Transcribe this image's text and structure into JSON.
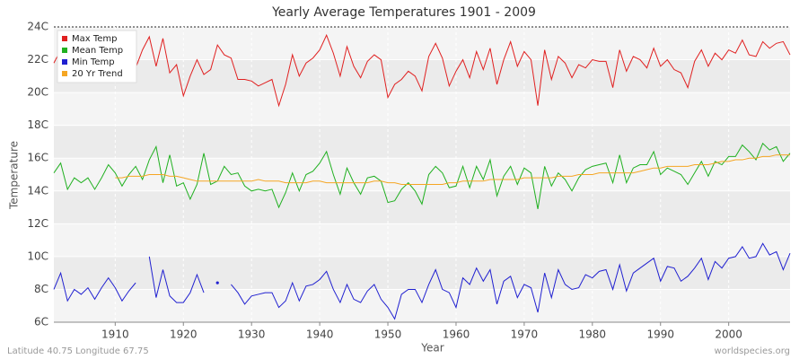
{
  "chart_data": {
    "type": "line",
    "title": "Yearly Average Temperatures 1901 - 2009",
    "x_label": "Year",
    "y_label": "Temperature",
    "footer_left": "Latitude 40.75 Longitude 67.75",
    "footer_right": "worldspecies.org",
    "legend": "upper left",
    "grid": true,
    "xlim": [
      1901,
      2009
    ],
    "xticks": [
      1910,
      1920,
      1930,
      1940,
      1950,
      1960,
      1970,
      1980,
      1990,
      2000
    ],
    "ylim": [
      6,
      24
    ],
    "yticks": [
      {
        "value": 6,
        "label": "6C"
      },
      {
        "value": 8,
        "label": "8C"
      },
      {
        "value": 10,
        "label": "10C"
      },
      {
        "value": 12,
        "label": "12C"
      },
      {
        "value": 14,
        "label": "14C"
      },
      {
        "value": 16,
        "label": "16C"
      },
      {
        "value": 18,
        "label": "18C"
      },
      {
        "value": 20,
        "label": "20C"
      },
      {
        "value": 22,
        "label": "22C"
      },
      {
        "value": 24,
        "label": "24C"
      }
    ],
    "x": [
      1901,
      1902,
      1903,
      1904,
      1905,
      1906,
      1907,
      1908,
      1909,
      1910,
      1911,
      1912,
      1913,
      1914,
      1915,
      1916,
      1917,
      1918,
      1919,
      1920,
      1921,
      1922,
      1923,
      1924,
      1925,
      1926,
      1927,
      1928,
      1929,
      1930,
      1931,
      1932,
      1933,
      1934,
      1935,
      1936,
      1937,
      1938,
      1939,
      1940,
      1941,
      1942,
      1943,
      1944,
      1945,
      1946,
      1947,
      1948,
      1949,
      1950,
      1951,
      1952,
      1953,
      1954,
      1955,
      1956,
      1957,
      1958,
      1959,
      1960,
      1961,
      1962,
      1963,
      1964,
      1965,
      1966,
      1967,
      1968,
      1969,
      1970,
      1971,
      1972,
      1973,
      1974,
      1975,
      1976,
      1977,
      1978,
      1979,
      1980,
      1981,
      1982,
      1983,
      1984,
      1985,
      1986,
      1987,
      1988,
      1989,
      1990,
      1991,
      1992,
      1993,
      1994,
      1995,
      1996,
      1997,
      1998,
      1999,
      2000,
      2001,
      2002,
      2003,
      2004,
      2005,
      2006,
      2007,
      2008,
      2009
    ],
    "series": [
      {
        "name": "Max Temp",
        "color": "#e02020",
        "values": [
          21.8,
          22.6,
          21.2,
          21.9,
          21.3,
          22.0,
          21.4,
          22.3,
          21.0,
          22.8,
          21.6,
          22.2,
          21.5,
          22.6,
          23.4,
          21.6,
          23.3,
          21.2,
          21.7,
          19.8,
          21.0,
          22.0,
          21.1,
          21.4,
          22.9,
          22.3,
          22.1,
          20.8,
          20.8,
          20.7,
          20.4,
          20.6,
          20.8,
          19.2,
          20.5,
          22.3,
          21.0,
          21.8,
          22.1,
          22.6,
          23.5,
          22.4,
          21.0,
          22.8,
          21.6,
          20.9,
          21.9,
          22.3,
          22.0,
          19.7,
          20.5,
          20.8,
          21.3,
          21.0,
          20.1,
          22.2,
          23.0,
          22.1,
          20.4,
          21.3,
          22.0,
          20.9,
          22.5,
          21.4,
          22.7,
          20.5,
          22.0,
          23.1,
          21.6,
          22.5,
          22.0,
          19.2,
          22.6,
          20.8,
          22.2,
          21.8,
          20.9,
          21.7,
          21.5,
          22.0,
          21.9,
          21.9,
          20.3,
          22.6,
          21.3,
          22.2,
          22.0,
          21.5,
          22.7,
          21.6,
          22.0,
          21.4,
          21.2,
          20.3,
          21.9,
          22.6,
          21.6,
          22.4,
          22.0,
          22.6,
          22.4,
          23.2,
          22.3,
          22.2,
          23.1,
          22.7,
          23.0,
          23.1,
          22.3
        ]
      },
      {
        "name": "Mean Temp",
        "color": "#20b020",
        "values": [
          15.1,
          15.7,
          14.1,
          14.8,
          14.5,
          14.8,
          14.1,
          14.8,
          15.6,
          15.1,
          14.3,
          15.0,
          15.5,
          14.7,
          15.9,
          16.7,
          14.5,
          16.2,
          14.3,
          14.5,
          13.5,
          14.4,
          16.3,
          14.4,
          14.6,
          15.5,
          15.0,
          15.1,
          14.3,
          14.0,
          14.1,
          14.0,
          14.1,
          13.0,
          13.9,
          15.1,
          14.0,
          15.0,
          15.2,
          15.7,
          16.4,
          15.0,
          13.8,
          15.4,
          14.5,
          13.8,
          14.8,
          14.9,
          14.6,
          13.3,
          13.4,
          14.1,
          14.5,
          14.0,
          13.2,
          15.0,
          15.5,
          15.1,
          14.2,
          14.3,
          15.5,
          14.2,
          15.5,
          14.7,
          15.9,
          13.7,
          14.9,
          15.5,
          14.4,
          15.4,
          15.1,
          12.9,
          15.5,
          14.3,
          15.1,
          14.7,
          14.0,
          14.8,
          15.3,
          15.5,
          15.6,
          15.7,
          14.5,
          16.2,
          14.5,
          15.4,
          15.6,
          15.6,
          16.4,
          15.0,
          15.4,
          15.2,
          15.0,
          14.4,
          15.1,
          15.8,
          14.9,
          15.8,
          15.6,
          16.1,
          16.1,
          16.8,
          16.4,
          15.9,
          16.9,
          16.5,
          16.7,
          15.8,
          16.3
        ]
      },
      {
        "name": "Min Temp",
        "color": "#2020d0",
        "values": [
          8.0,
          9.0,
          7.3,
          8.0,
          7.7,
          8.1,
          7.4,
          8.1,
          8.7,
          8.1,
          7.3,
          7.9,
          8.4,
          null,
          10.0,
          7.5,
          9.2,
          7.6,
          7.2,
          7.2,
          7.8,
          8.9,
          7.8,
          null,
          8.4,
          null,
          8.3,
          7.8,
          7.1,
          7.6,
          7.7,
          7.8,
          7.8,
          6.9,
          7.3,
          8.4,
          7.3,
          8.2,
          8.3,
          8.6,
          9.1,
          8.0,
          7.2,
          8.3,
          7.4,
          7.2,
          7.9,
          8.3,
          7.4,
          6.9,
          6.2,
          7.7,
          8.0,
          8.0,
          7.2,
          8.3,
          9.2,
          8.0,
          7.8,
          6.9,
          8.7,
          8.3,
          9.3,
          8.5,
          9.2,
          7.1,
          8.5,
          8.8,
          7.5,
          8.3,
          8.1,
          6.6,
          9.0,
          7.5,
          9.2,
          8.3,
          8.0,
          8.1,
          8.9,
          8.7,
          9.1,
          9.2,
          8.0,
          9.5,
          7.9,
          9.0,
          9.3,
          9.6,
          9.9,
          8.5,
          9.4,
          9.3,
          8.5,
          8.8,
          9.3,
          9.9,
          8.6,
          9.7,
          9.3,
          9.9,
          10.0,
          10.6,
          9.9,
          10.0,
          10.8,
          10.1,
          10.3,
          9.2,
          10.2
        ]
      },
      {
        "name": "20 Yr Trend",
        "color": "#f5a623",
        "values": [
          null,
          null,
          null,
          null,
          null,
          null,
          null,
          null,
          null,
          14.8,
          14.8,
          14.9,
          14.9,
          14.9,
          15.0,
          15.0,
          15.0,
          14.9,
          14.9,
          14.8,
          14.7,
          14.6,
          14.6,
          14.6,
          14.6,
          14.6,
          14.6,
          14.6,
          14.6,
          14.6,
          14.7,
          14.6,
          14.6,
          14.6,
          14.5,
          14.5,
          14.5,
          14.5,
          14.6,
          14.6,
          14.5,
          14.5,
          14.5,
          14.5,
          14.5,
          14.5,
          14.5,
          14.6,
          14.6,
          14.5,
          14.5,
          14.4,
          14.4,
          14.4,
          14.4,
          14.4,
          14.4,
          14.4,
          14.5,
          14.5,
          14.6,
          14.6,
          14.6,
          14.6,
          14.7,
          14.7,
          14.7,
          14.7,
          14.7,
          14.8,
          14.8,
          14.8,
          14.8,
          14.8,
          14.9,
          14.9,
          14.9,
          15.0,
          15.0,
          15.0,
          15.1,
          15.1,
          15.1,
          15.1,
          15.1,
          15.1,
          15.2,
          15.3,
          15.4,
          15.4,
          15.5,
          15.5,
          15.5,
          15.5,
          15.6,
          15.6,
          15.6,
          15.7,
          15.8,
          15.8,
          15.9,
          15.9,
          16.0,
          16.0,
          16.1,
          16.1,
          16.2,
          16.2,
          16.2
        ]
      }
    ]
  }
}
